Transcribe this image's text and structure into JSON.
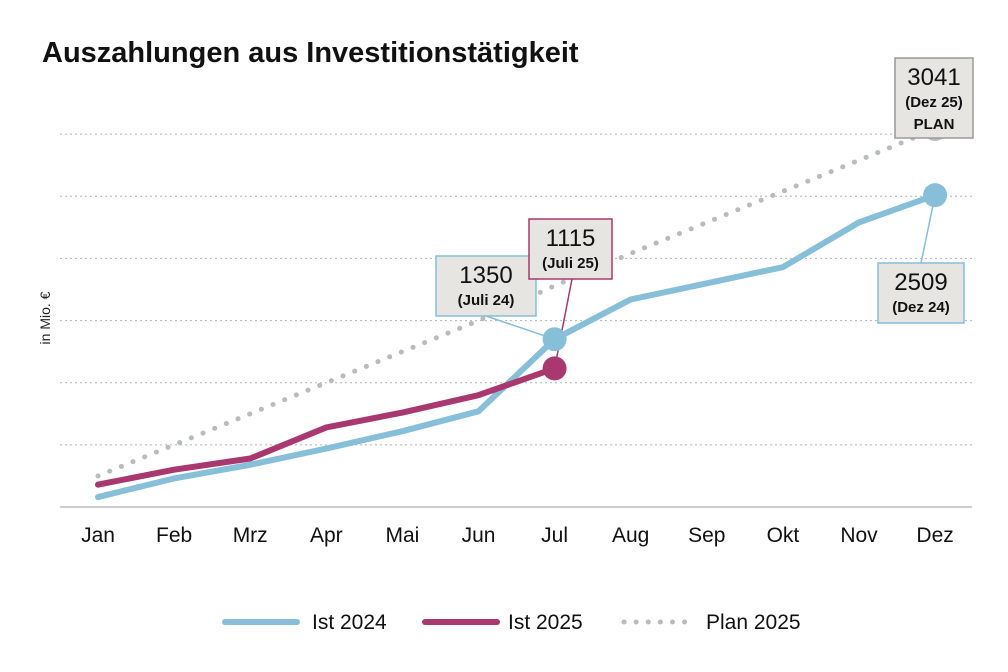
{
  "chart_data": {
    "type": "line",
    "title": "Auszahlungen aus Investitionstätigkeit",
    "ylabel": "in Mio. €",
    "xlabel": "",
    "categories": [
      "Jan",
      "Feb",
      "Mrz",
      "Apr",
      "Mai",
      "Jun",
      "Jul",
      "Aug",
      "Sep",
      "Okt",
      "Nov",
      "Dez"
    ],
    "ylim": [
      0,
      3500
    ],
    "grid": true,
    "legend_position": "bottom",
    "series": [
      {
        "name": "Ist 2024",
        "color": "#87bfd8",
        "style": "solid",
        "values": [
          80,
          230,
          340,
          470,
          610,
          770,
          1350,
          1670,
          1800,
          1930,
          2290,
          2509
        ]
      },
      {
        "name": "Ist 2025",
        "color": "#a8386f",
        "style": "solid",
        "values": [
          180,
          300,
          390,
          640,
          760,
          900,
          1115,
          null,
          null,
          null,
          null,
          null
        ]
      },
      {
        "name": "Plan 2025",
        "color": "#b9bcbc",
        "style": "dotted",
        "values": [
          250,
          500,
          750,
          1000,
          1250,
          1500,
          1780,
          2040,
          2290,
          2540,
          2790,
          3041
        ]
      }
    ],
    "annotations": [
      {
        "series": 0,
        "index": 6,
        "value_text": "1350",
        "sub_text": "(Juli 24)",
        "plan_text": "",
        "border": "#87bfd8"
      },
      {
        "series": 1,
        "index": 6,
        "value_text": "1115",
        "sub_text": "(Juli 25)",
        "plan_text": "",
        "border": "#a8386f"
      },
      {
        "series": 2,
        "index": 11,
        "value_text": "3041",
        "sub_text": "(Dez 25)",
        "plan_text": "PLAN",
        "border": "#9a9a9a"
      },
      {
        "series": 0,
        "index": 11,
        "value_text": "2509",
        "sub_text": "(Dez 24)",
        "plan_text": "",
        "border": "#87bfd8"
      }
    ]
  }
}
